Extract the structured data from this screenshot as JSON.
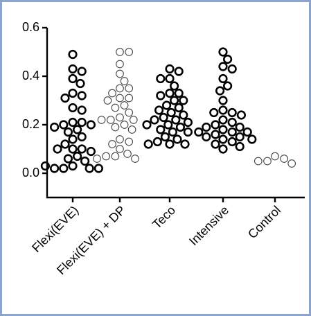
{
  "chart_data": {
    "type": "strip",
    "categories": [
      "Flexi(EVE)",
      "Flexi(EVE) + DP",
      "Teco",
      "Intensive",
      "Control"
    ],
    "groups": [
      {
        "color": "#000000",
        "marker_edge_width": 2.6,
        "values": [
          0.49,
          0.43,
          0.42,
          0.39,
          0.37,
          0.33,
          0.32,
          0.31,
          0.27,
          0.26,
          0.21,
          0.21,
          0.2,
          0.2,
          0.19,
          0.18,
          0.17,
          0.15,
          0.14,
          0.12,
          0.1,
          0.1,
          0.1,
          0.09,
          0.07,
          0.06,
          0.05,
          0.03,
          0.02,
          0.02,
          0.02,
          0.02,
          0.03
        ]
      },
      {
        "color": "#444444",
        "marker_edge_width": 1.1,
        "values": [
          0.5,
          0.5,
          0.45,
          0.41,
          0.38,
          0.35,
          0.35,
          0.33,
          0.31,
          0.31,
          0.3,
          0.28,
          0.27,
          0.25,
          0.23,
          0.22,
          0.22,
          0.22,
          0.2,
          0.19,
          0.18,
          0.14,
          0.13,
          0.12,
          0.1,
          0.08,
          0.07,
          0.07,
          0.06,
          0.06
        ]
      },
      {
        "color": "#000000",
        "marker_edge_width": 2.6,
        "values": [
          0.43,
          0.42,
          0.39,
          0.39,
          0.36,
          0.33,
          0.33,
          0.32,
          0.3,
          0.3,
          0.28,
          0.27,
          0.26,
          0.25,
          0.24,
          0.23,
          0.22,
          0.22,
          0.21,
          0.2,
          0.2,
          0.19,
          0.18,
          0.17,
          0.17,
          0.15,
          0.14,
          0.13,
          0.12,
          0.12,
          0.12
        ]
      },
      {
        "color": "#000000",
        "marker_edge_width": 2.6,
        "values": [
          0.5,
          0.47,
          0.44,
          0.43,
          0.39,
          0.36,
          0.34,
          0.3,
          0.26,
          0.25,
          0.25,
          0.24,
          0.22,
          0.21,
          0.2,
          0.19,
          0.19,
          0.18,
          0.17,
          0.17,
          0.17,
          0.16,
          0.15,
          0.15,
          0.14,
          0.14,
          0.13,
          0.12,
          0.11,
          0.1
        ]
      },
      {
        "color": "#444444",
        "marker_edge_width": 1.1,
        "values": [
          0.07,
          0.06,
          0.05,
          0.05,
          0.04
        ]
      }
    ],
    "ylim": [
      -0.1,
      0.6
    ],
    "yticks": [
      {
        "value": 0,
        "label": "0.0"
      },
      0.2,
      0.4,
      0.6
    ]
  }
}
